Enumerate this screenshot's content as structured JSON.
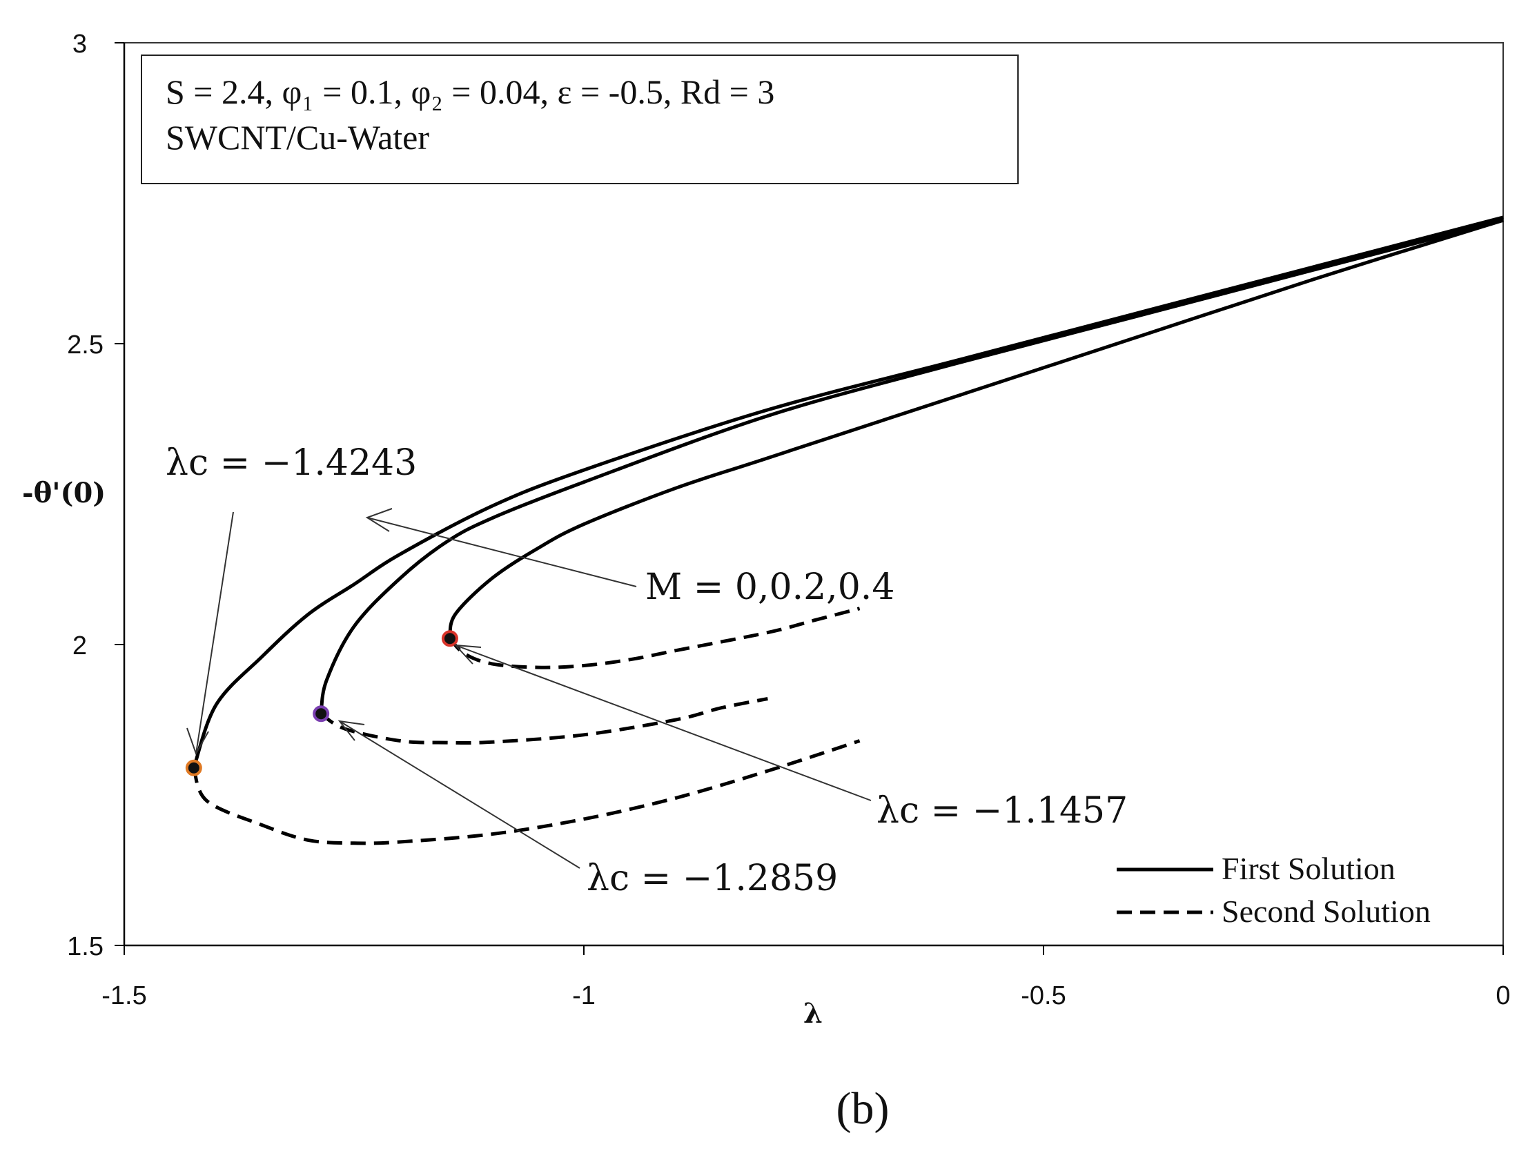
{
  "chart_data": {
    "type": "line",
    "xlabel": "λ",
    "ylabel": "-θ'(0)",
    "xlim": [
      -1.5,
      0
    ],
    "ylim": [
      1.5,
      3
    ],
    "x_ticks": [
      "-1.5",
      "-1",
      "-0.5",
      "0"
    ],
    "y_ticks": [
      "1.5",
      "2",
      "2.5",
      "3"
    ],
    "info_box": {
      "line1": "S = 2.4, φ₁ = 0.1, φ₂ = 0.04, ε = -0.5,  Rd = 3",
      "line2": "SWCNT/Cu-Water"
    },
    "legend": {
      "position": "bottom-right",
      "first": "First Solution",
      "second": "Second Solution"
    },
    "annotations": {
      "m_label": "M = 0,0.2,0.4",
      "lc1": "λc = −1.4243",
      "lc2": "λc = −1.2859",
      "lc3": "λc = −1.1457"
    },
    "critical_points": [
      {
        "x": -1.4243,
        "y": 1.795,
        "color": "#e07a24"
      },
      {
        "x": -1.2859,
        "y": 1.885,
        "color": "#7a3fb0"
      },
      {
        "x": -1.1457,
        "y": 2.01,
        "color": "#d8342a"
      }
    ],
    "series": [
      {
        "solution": "first",
        "x": [
          -1.4243,
          -1.4,
          -1.35,
          -1.3,
          -1.25,
          -1.2,
          -1.1,
          -1.0,
          -0.8,
          -0.6,
          -0.4,
          -0.2,
          0.0
        ],
        "y": [
          1.795,
          1.9,
          1.98,
          2.05,
          2.1,
          2.15,
          2.23,
          2.29,
          2.39,
          2.47,
          2.55,
          2.63,
          2.71
        ]
      },
      {
        "solution": "first",
        "x": [
          -1.2859,
          -1.28,
          -1.25,
          -1.2,
          -1.15,
          -1.1,
          -1.0,
          -0.8,
          -0.6,
          -0.4,
          -0.2,
          0.0
        ],
        "y": [
          1.885,
          1.94,
          2.03,
          2.11,
          2.17,
          2.21,
          2.27,
          2.38,
          2.465,
          2.545,
          2.625,
          2.705
        ]
      },
      {
        "solution": "first",
        "x": [
          -1.1457,
          -1.14,
          -1.1,
          -1.05,
          -1.0,
          -0.9,
          -0.8,
          -0.6,
          -0.4,
          -0.2,
          0.0
        ],
        "y": [
          2.01,
          2.05,
          2.11,
          2.16,
          2.2,
          2.26,
          2.31,
          2.41,
          2.51,
          2.61,
          2.705
        ]
      },
      {
        "solution": "second",
        "x": [
          -1.4243,
          -1.41,
          -1.35,
          -1.3,
          -1.25,
          -1.2,
          -1.1,
          -1.0,
          -0.9,
          -0.8,
          -0.7
        ],
        "y": [
          1.795,
          1.74,
          1.7,
          1.675,
          1.67,
          1.672,
          1.685,
          1.71,
          1.745,
          1.79,
          1.84
        ]
      },
      {
        "solution": "second",
        "x": [
          -1.2859,
          -1.26,
          -1.2,
          -1.15,
          -1.1,
          -1.0,
          -0.9,
          -0.85,
          -0.8
        ],
        "y": [
          1.885,
          1.86,
          1.84,
          1.837,
          1.838,
          1.85,
          1.875,
          1.895,
          1.91
        ]
      },
      {
        "solution": "second",
        "x": [
          -1.1457,
          -1.13,
          -1.1,
          -1.05,
          -1.0,
          -0.95,
          -0.9,
          -0.8,
          -0.75,
          -0.7
        ],
        "y": [
          2.01,
          1.985,
          1.968,
          1.962,
          1.965,
          1.975,
          1.99,
          2.02,
          2.04,
          2.06
        ]
      }
    ]
  },
  "caption": "(b)"
}
